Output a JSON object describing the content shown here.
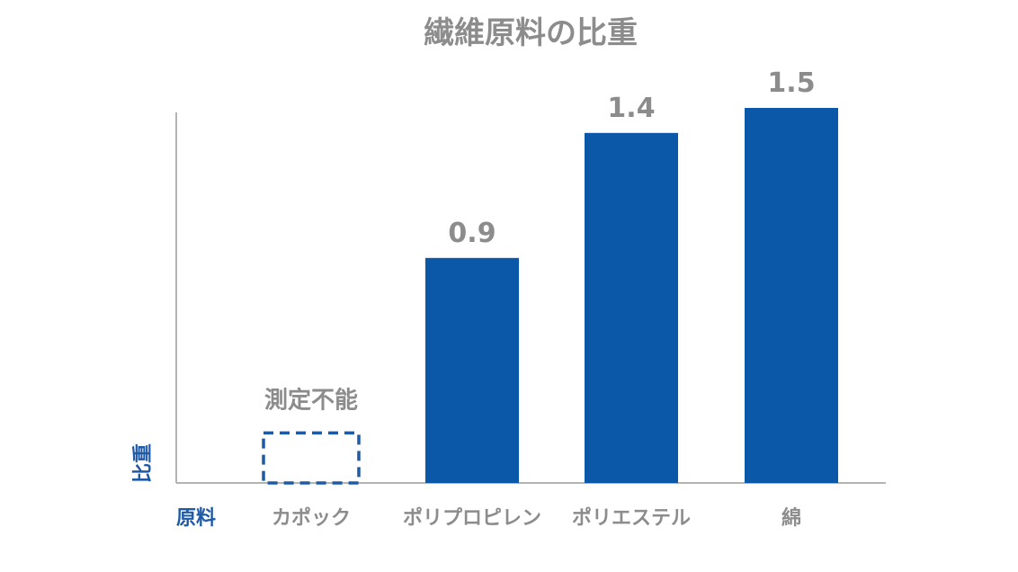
{
  "chart_data": {
    "type": "bar",
    "title": "繊維原料の比重",
    "xlabel": "原料",
    "ylabel": "比重",
    "categories": [
      "カポック",
      "ポリプロピレン",
      "ポリエステル",
      "綿"
    ],
    "values": [
      null,
      0.9,
      1.4,
      1.5
    ],
    "value_labels": [
      "測定不能",
      "0.9",
      "1.4",
      "1.5"
    ],
    "ylim": [
      0,
      1.5
    ],
    "grid": false,
    "legend": "none",
    "colors": {
      "bar": "#0b58a8",
      "placeholder_stroke": "#1f5aa6",
      "text": "#8c8c8c",
      "axis_title": "#1f5aa6",
      "axis_line": "#b3b3b3"
    }
  }
}
